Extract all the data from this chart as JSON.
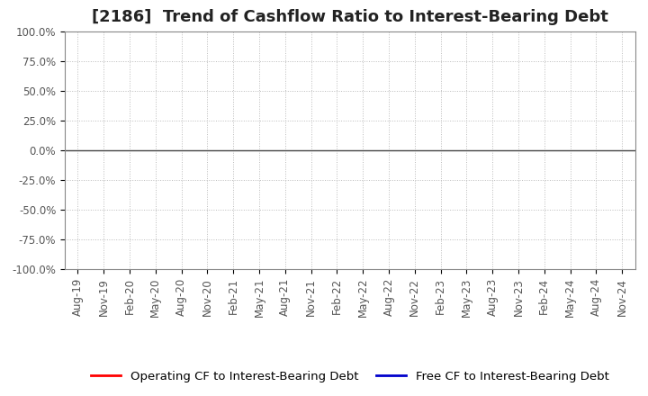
{
  "title": "[2186]  Trend of Cashflow Ratio to Interest-Bearing Debt",
  "ylim": [
    -1.0,
    1.0
  ],
  "yticks": [
    -1.0,
    -0.75,
    -0.5,
    -0.25,
    0.0,
    0.25,
    0.5,
    0.75,
    1.0
  ],
  "ytick_labels": [
    "-100.0%",
    "-75.0%",
    "-50.0%",
    "-25.0%",
    "0.0%",
    "25.0%",
    "50.0%",
    "75.0%",
    "100.0%"
  ],
  "x_labels": [
    "Aug-19",
    "Nov-19",
    "Feb-20",
    "May-20",
    "Aug-20",
    "Nov-20",
    "Feb-21",
    "May-21",
    "Aug-21",
    "Nov-21",
    "Feb-22",
    "May-22",
    "Aug-22",
    "Nov-22",
    "Feb-23",
    "May-23",
    "Aug-23",
    "Nov-23",
    "Feb-24",
    "May-24",
    "Aug-24",
    "Nov-24"
  ],
  "operating_cf_color": "#FF0000",
  "free_cf_color": "#0000CC",
  "background_color": "#FFFFFF",
  "plot_bg_color": "#FFFFFF",
  "grid_color": "#BBBBBB",
  "zero_line_color": "#444444",
  "legend_label_operating": "Operating CF to Interest-Bearing Debt",
  "legend_label_free": "Free CF to Interest-Bearing Debt",
  "title_fontsize": 13,
  "tick_fontsize": 8.5,
  "legend_fontsize": 9.5,
  "operating_cf_data": [],
  "free_cf_data": []
}
